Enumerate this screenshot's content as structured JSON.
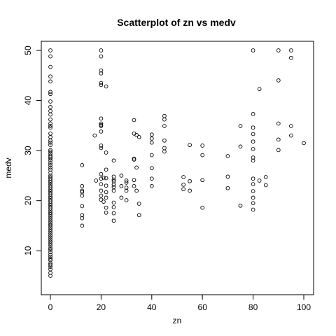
{
  "chart_data": {
    "type": "scatter",
    "title": "Scatterplot of zn vs medv",
    "xlabel": "zn",
    "ylabel": "medv",
    "xlim": [
      0,
      100
    ],
    "ylim": [
      5,
      50
    ],
    "x_ticks": [
      0,
      20,
      40,
      60,
      80,
      100
    ],
    "y_ticks": [
      10,
      20,
      30,
      40,
      50
    ],
    "grid": false,
    "legend": "none",
    "marker": "open-circle",
    "colors": {
      "points": "#000000",
      "axes": "#000000",
      "background": "#ffffff"
    },
    "points": [
      [
        0,
        50
      ],
      [
        0,
        48.8
      ],
      [
        0,
        46.7
      ],
      [
        0,
        44.8
      ],
      [
        0,
        43.8
      ],
      [
        0,
        41.7
      ],
      [
        0,
        41.3
      ],
      [
        0,
        39.8
      ],
      [
        0,
        38.7
      ],
      [
        0,
        37.9
      ],
      [
        0,
        37.2
      ],
      [
        0,
        36.2
      ],
      [
        0,
        35.4
      ],
      [
        0,
        34.9
      ],
      [
        0,
        34.6
      ],
      [
        0,
        33.4
      ],
      [
        0,
        32.7
      ],
      [
        0,
        32.0
      ],
      [
        0,
        31.6
      ],
      [
        0,
        31.1
      ],
      [
        0,
        30.1
      ],
      [
        0,
        29.8
      ],
      [
        0,
        29.4
      ],
      [
        0,
        29.0
      ],
      [
        0,
        28.7
      ],
      [
        0,
        28.4
      ],
      [
        0,
        28.0
      ],
      [
        0,
        27.5
      ],
      [
        0,
        27.1
      ],
      [
        0,
        26.6
      ],
      [
        0,
        26.2
      ],
      [
        0,
        25.6
      ],
      [
        0,
        25.0
      ],
      [
        0,
        24.7
      ],
      [
        0,
        24.4
      ],
      [
        0,
        24.0
      ],
      [
        0,
        23.7
      ],
      [
        0,
        23.3
      ],
      [
        0,
        22.9
      ],
      [
        0,
        22.6
      ],
      [
        0,
        22.2
      ],
      [
        0,
        21.9
      ],
      [
        0,
        21.5
      ],
      [
        0,
        21.2
      ],
      [
        0,
        20.8
      ],
      [
        0,
        20.5
      ],
      [
        0,
        20.1
      ],
      [
        0,
        19.8
      ],
      [
        0,
        19.4
      ],
      [
        0,
        19.1
      ],
      [
        0,
        18.7
      ],
      [
        0,
        18.4
      ],
      [
        0,
        18.0
      ],
      [
        0,
        17.6
      ],
      [
        0,
        17.3
      ],
      [
        0,
        16.9
      ],
      [
        0,
        16.5
      ],
      [
        0,
        16.1
      ],
      [
        0,
        15.7
      ],
      [
        0,
        15.3
      ],
      [
        0,
        15.0
      ],
      [
        0,
        14.6
      ],
      [
        0,
        14.2
      ],
      [
        0,
        13.8
      ],
      [
        0,
        13.4
      ],
      [
        0,
        13.0
      ],
      [
        0,
        12.6
      ],
      [
        0,
        12.2
      ],
      [
        0,
        11.8
      ],
      [
        0,
        11.4
      ],
      [
        0,
        11.0
      ],
      [
        0,
        10.5
      ],
      [
        0,
        10.2
      ],
      [
        0,
        9.7
      ],
      [
        0,
        9.2
      ],
      [
        0,
        8.8
      ],
      [
        0,
        8.4
      ],
      [
        0,
        8.1
      ],
      [
        0,
        7.5
      ],
      [
        0,
        7.2
      ],
      [
        0,
        6.8
      ],
      [
        0,
        6.3
      ],
      [
        0,
        5.6
      ],
      [
        0,
        5.0
      ],
      [
        12.5,
        27.1
      ],
      [
        12.5,
        22.9
      ],
      [
        12.5,
        22.0
      ],
      [
        12.5,
        21.7
      ],
      [
        12.5,
        21.0
      ],
      [
        12.5,
        18.9
      ],
      [
        12.5,
        17.1
      ],
      [
        12.5,
        16.5
      ],
      [
        12.5,
        15.0
      ],
      [
        17.5,
        33.0
      ],
      [
        18,
        24.0
      ],
      [
        20,
        50.0
      ],
      [
        20,
        48.8
      ],
      [
        20,
        46.0
      ],
      [
        20,
        45.4
      ],
      [
        20,
        43.5
      ],
      [
        20,
        43.1
      ],
      [
        20,
        36.4
      ],
      [
        20,
        35.4
      ],
      [
        20,
        35.1
      ],
      [
        20,
        34.9
      ],
      [
        20,
        33.8
      ],
      [
        20,
        31.0
      ],
      [
        20,
        30.5
      ],
      [
        20,
        25.3
      ],
      [
        20,
        24.4
      ],
      [
        20,
        23.3
      ],
      [
        20,
        22.0
      ],
      [
        20,
        21.0
      ],
      [
        20,
        20.2
      ],
      [
        21,
        24.6
      ],
      [
        21,
        19.8
      ],
      [
        22,
        42.8
      ],
      [
        22,
        29.6
      ],
      [
        22,
        26.2
      ],
      [
        22,
        24.5
      ],
      [
        22,
        23.0
      ],
      [
        22,
        21.7
      ],
      [
        22,
        20.6
      ],
      [
        22,
        18.6
      ],
      [
        22,
        17.6
      ],
      [
        25,
        28.0
      ],
      [
        25,
        24.8
      ],
      [
        25,
        24.2
      ],
      [
        25,
        23.9
      ],
      [
        25,
        23.2
      ],
      [
        25,
        22.7
      ],
      [
        25,
        22.0
      ],
      [
        25,
        19.6
      ],
      [
        25,
        18.7
      ],
      [
        25,
        17.5
      ],
      [
        25,
        16.0
      ],
      [
        28,
        25.0
      ],
      [
        28,
        22.9
      ],
      [
        28,
        20.6
      ],
      [
        30,
        24.0
      ],
      [
        30,
        23.6
      ],
      [
        30,
        22.6
      ],
      [
        30,
        22.0
      ],
      [
        30,
        20.1
      ],
      [
        33,
        36.1
      ],
      [
        33,
        33.4
      ],
      [
        33,
        28.4
      ],
      [
        33,
        28.2
      ],
      [
        33,
        24.1
      ],
      [
        33,
        22.9
      ],
      [
        34,
        33.1
      ],
      [
        34,
        26.6
      ],
      [
        34,
        22.0
      ],
      [
        35,
        32.7
      ],
      [
        35,
        19.4
      ],
      [
        35,
        17.1
      ],
      [
        40,
        33.2
      ],
      [
        40,
        32.4
      ],
      [
        40,
        31.6
      ],
      [
        40,
        29.1
      ],
      [
        40,
        26.5
      ],
      [
        40,
        24.4
      ],
      [
        40,
        22.9
      ],
      [
        45,
        36.9
      ],
      [
        45,
        36.2
      ],
      [
        45,
        34.9
      ],
      [
        45,
        32.0
      ],
      [
        45,
        30.5
      ],
      [
        45,
        29.8
      ],
      [
        52.5,
        24.7
      ],
      [
        52.5,
        23.2
      ],
      [
        52.5,
        22.3
      ],
      [
        55,
        31.1
      ],
      [
        55,
        23.9
      ],
      [
        55,
        22.0
      ],
      [
        60,
        31.0
      ],
      [
        60,
        29.1
      ],
      [
        60,
        24.1
      ],
      [
        60,
        18.6
      ],
      [
        70,
        28.9
      ],
      [
        70,
        24.8
      ],
      [
        70,
        22.5
      ],
      [
        75,
        34.9
      ],
      [
        75,
        30.8
      ],
      [
        75,
        19.0
      ],
      [
        80,
        50.0
      ],
      [
        80,
        37.3
      ],
      [
        80,
        34.6
      ],
      [
        80,
        33.3
      ],
      [
        80,
        31.8
      ],
      [
        80,
        30.3
      ],
      [
        80,
        28.6
      ],
      [
        80,
        28.0
      ],
      [
        80,
        24.4
      ],
      [
        80,
        23.3
      ],
      [
        80,
        21.9
      ],
      [
        80,
        20.6
      ],
      [
        80,
        19.5
      ],
      [
        80,
        18.2
      ],
      [
        82.5,
        42.3
      ],
      [
        82.5,
        24.0
      ],
      [
        85,
        24.7
      ],
      [
        85,
        23.1
      ],
      [
        90,
        50.0
      ],
      [
        90,
        44.0
      ],
      [
        90,
        35.4
      ],
      [
        90,
        32.2
      ],
      [
        90,
        30.1
      ],
      [
        95,
        50.0
      ],
      [
        95,
        48.5
      ],
      [
        95,
        34.9
      ],
      [
        95,
        33.0
      ],
      [
        100,
        31.5
      ]
    ]
  }
}
